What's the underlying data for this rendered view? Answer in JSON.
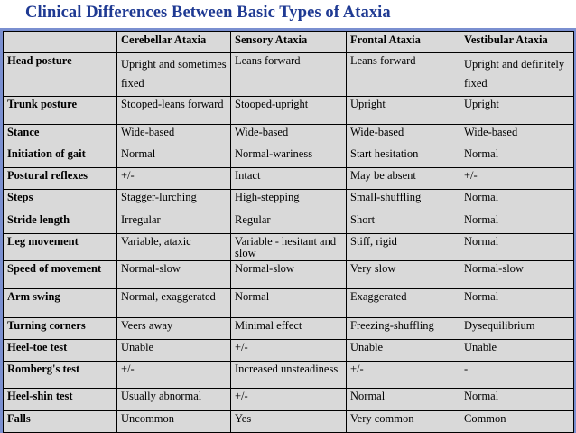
{
  "slide": {
    "title": "Clinical Differences Between Basic Types of Ataxia"
  },
  "table": {
    "columns": [
      "",
      "Cerebellar Ataxia",
      "Sensory Ataxia",
      "Frontal Ataxia",
      "Vestibular Ataxia"
    ],
    "rows": [
      {
        "label": "Head posture",
        "cells": [
          "Upright and sometimes fixed",
          "Leans forward",
          "Leans forward",
          "Upright and definitely fixed"
        ]
      },
      {
        "label": "Trunk posture",
        "cells": [
          "Stooped-leans forward",
          "Stooped-upright",
          "Upright",
          "Upright"
        ]
      },
      {
        "label": "Stance",
        "cells": [
          "Wide-based",
          "Wide-based",
          "Wide-based",
          "Wide-based"
        ]
      },
      {
        "label": "Initiation of gait",
        "cells": [
          "Normal",
          "Normal-wariness",
          "Start hesitation",
          "Normal"
        ]
      },
      {
        "label": "Postural reflexes",
        "cells": [
          "+/-",
          "Intact",
          "May be absent",
          "+/-"
        ]
      },
      {
        "label": "Steps",
        "cells": [
          "Stagger-lurching",
          "High-stepping",
          "Small-shuffling",
          "Normal"
        ]
      },
      {
        "label": "Stride length",
        "cells": [
          "Irregular",
          "Regular",
          "Short",
          "Normal"
        ]
      },
      {
        "label": "Leg movement",
        "cells": [
          "Variable, ataxic",
          "Variable - hesitant and slow",
          "Stiff, rigid",
          "Normal"
        ]
      },
      {
        "label": "Speed of movement",
        "cells": [
          "Normal-slow",
          "Normal-slow",
          "Very slow",
          "Normal-slow"
        ]
      },
      {
        "label": "Arm swing",
        "cells": [
          "Normal, exaggerated",
          "Normal",
          "Exaggerated",
          "Normal"
        ]
      },
      {
        "label": "Turning corners",
        "cells": [
          "Veers away",
          "Minimal effect",
          "Freezing-shuffling",
          "Dysequilibrium"
        ]
      },
      {
        "label": "Heel-toe test",
        "cells": [
          "Unable",
          "+/-",
          "Unable",
          "Unable"
        ]
      },
      {
        "label": "Romberg's test",
        "cells": [
          "+/-",
          "Increased unsteadiness",
          "+/-",
          "-"
        ]
      },
      {
        "label": "Heel-shin test",
        "cells": [
          "Usually abnormal",
          "+/-",
          "Normal",
          "Normal"
        ]
      },
      {
        "label": "Falls",
        "cells": [
          "Uncommon",
          "Yes",
          "Very common",
          "Common"
        ]
      }
    ]
  },
  "colors": {
    "title": "#1f3a93",
    "rule": "#7a8fd0",
    "table_bg": "#d9d9d9",
    "border": "#000000"
  }
}
